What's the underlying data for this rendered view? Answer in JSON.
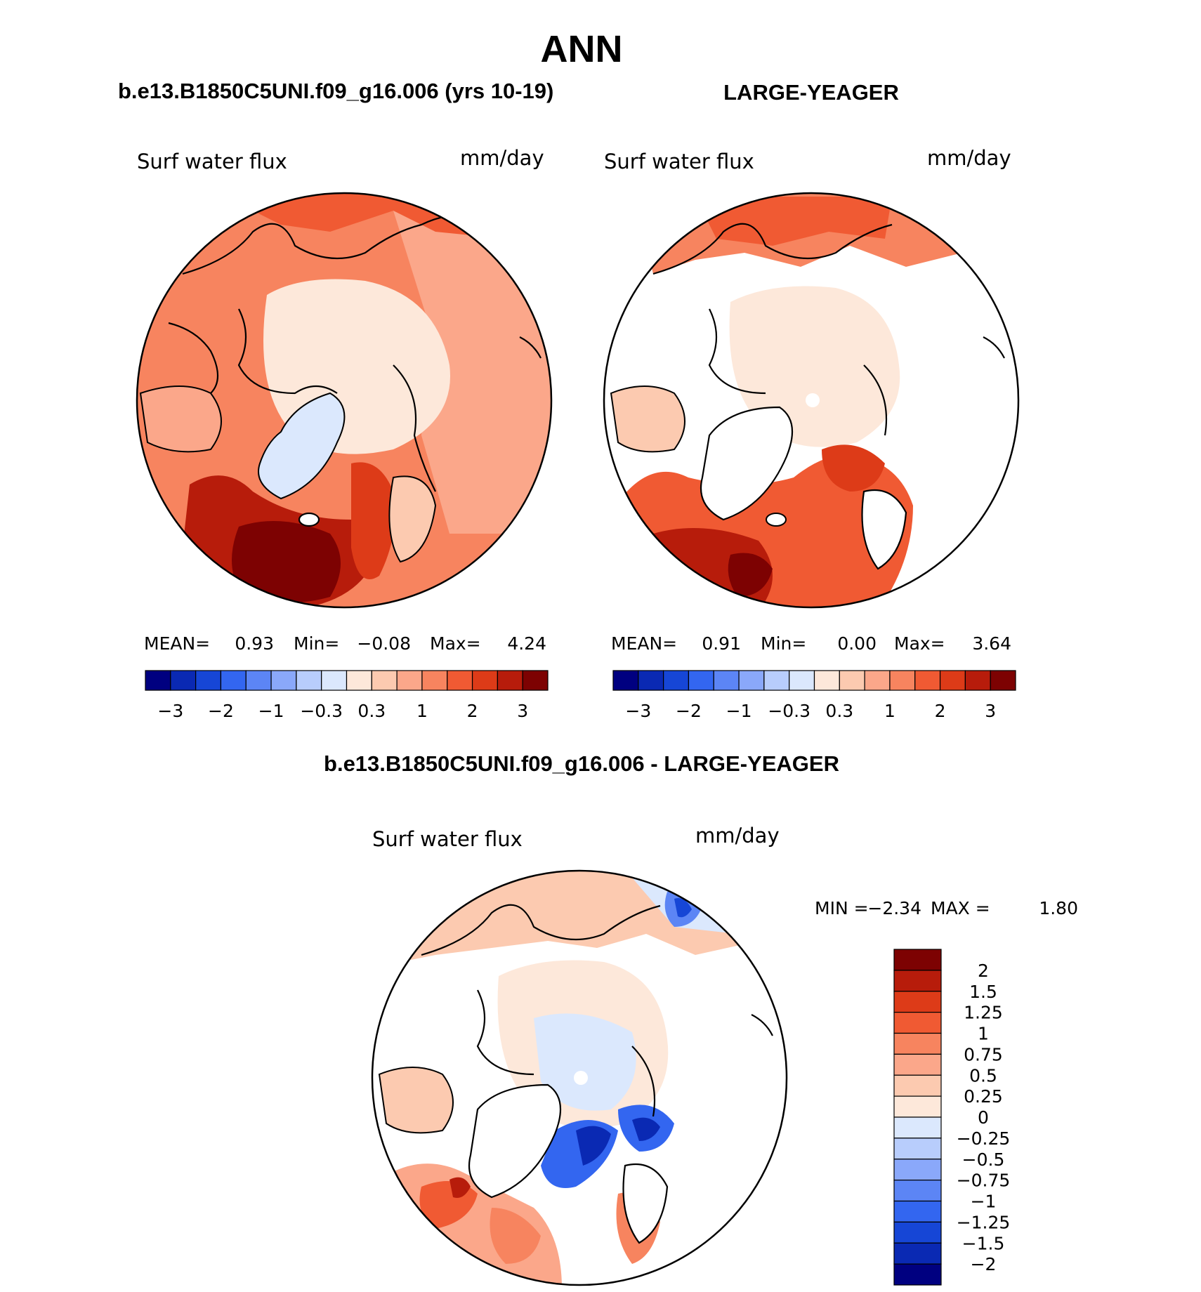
{
  "page_title": "ANN",
  "panels": [
    {
      "heading": "b.e13.B1850C5UNI.f09_g16.006 (yrs 10-19)",
      "variable": "Surf water flux",
      "units": "mm/day",
      "stats": {
        "mean_label": "MEAN=",
        "mean": "0.93",
        "min_label": "Min=",
        "min": "−0.08",
        "max_label": "Max=",
        "max": "4.24"
      }
    },
    {
      "heading": "LARGE-YEAGER",
      "variable": "Surf water flux",
      "units": "mm/day",
      "stats": {
        "mean_label": "MEAN=",
        "mean": "0.91",
        "min_label": "Min=",
        "min": "0.00",
        "max_label": "Max=",
        "max": "3.64"
      }
    },
    {
      "heading": "b.e13.B1850C5UNI.f09_g16.006 - LARGE-YEAGER",
      "variable": "Surf water flux",
      "units": "mm/day",
      "stats": {
        "min_label": "MIN =",
        "min": "−2.34",
        "max_label": "MAX =",
        "max": "1.80"
      }
    }
  ],
  "colorbar_top": {
    "colors": [
      "#000080",
      "#0a29b3",
      "#1646d6",
      "#3366f0",
      "#5c85f5",
      "#8aa8fa",
      "#b8cdfc",
      "#dbe8fd",
      "#fde8da",
      "#fccab0",
      "#fba78a",
      "#f7845f",
      "#f05a33",
      "#dd3b18",
      "#b71c0b",
      "#7d0202"
    ],
    "tick_labels": [
      "−3",
      "−2",
      "−1",
      "−0.3",
      "0.3",
      "1",
      "2",
      "3"
    ]
  },
  "colorbar_diff": {
    "colors": [
      "#7d0202",
      "#b71c0b",
      "#dd3b18",
      "#f05a33",
      "#f7845f",
      "#fba78a",
      "#fccab0",
      "#fde8da",
      "#dbe8fd",
      "#b8cdfc",
      "#8aa8fa",
      "#5c85f5",
      "#3366f0",
      "#1646d6",
      "#0a29b3",
      "#000080"
    ],
    "tick_labels": [
      "2",
      "1.5",
      "1.25",
      "1",
      "0.75",
      "0.5",
      "0.25",
      "0",
      "−0.25",
      "−0.5",
      "−0.75",
      "−1",
      "−1.25",
      "−1.5",
      "−2"
    ]
  },
  "colors": {
    "dark_red": "#7d0202",
    "red": "#dd3b18",
    "orange": "#f7845f",
    "light_orange": "#fccab0",
    "pale": "#fde8da",
    "pale_blue": "#dbe8fd",
    "blue": "#3366f0",
    "dark_blue": "#0a29b3"
  }
}
